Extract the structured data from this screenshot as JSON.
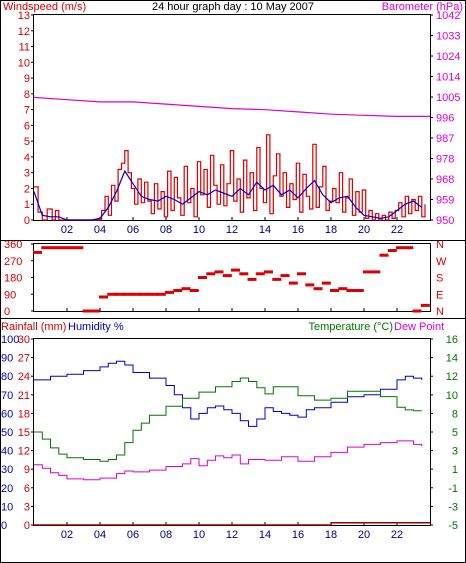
{
  "header": {
    "title": "24 hour graph day : 10 May 2007",
    "left_label": "Windspeed (m/s)",
    "right_label": "Barometer (hPa)"
  },
  "colors": {
    "red": "#dd0000",
    "blue": "#0000cc",
    "magenta": "#dd00dd",
    "green": "#007700",
    "darkred": "#990000",
    "frame": "#000000"
  },
  "chart_data": [
    {
      "type": "line",
      "title": "24 hour graph day : 10 May 2007",
      "ylabel": "Windspeed (m/s)",
      "ylabel_right": "Barometer (hPa)",
      "x_ticks": [
        "02",
        "04",
        "06",
        "08",
        "10",
        "12",
        "14",
        "16",
        "18",
        "20",
        "22"
      ],
      "xlim": [
        0,
        24
      ],
      "ylim": [
        0,
        13
      ],
      "y_ticks": [
        0,
        1,
        2,
        3,
        4,
        5,
        6,
        7,
        8,
        9,
        10,
        11,
        12,
        13
      ],
      "y2_ticks": [
        950,
        959,
        968,
        978,
        987,
        996,
        1005,
        1014,
        1024,
        1033,
        1042
      ],
      "ylim_right": [
        950,
        1042
      ],
      "series": [
        {
          "name": "Windspeed (m/s)",
          "color": "#dd0000",
          "x": [
            0,
            0.25,
            0.5,
            0.8,
            1.1,
            1.3,
            1.5,
            1.8,
            2.0,
            2.2,
            2.5,
            2.8,
            3.0,
            3.3,
            3.6,
            3.9,
            4.1,
            4.3,
            4.5,
            4.7,
            4.9,
            5.1,
            5.3,
            5.5,
            5.7,
            5.9,
            6.1,
            6.3,
            6.5,
            6.7,
            6.9,
            7.1,
            7.3,
            7.5,
            7.7,
            7.9,
            8.1,
            8.3,
            8.5,
            8.7,
            8.9,
            9.1,
            9.3,
            9.5,
            9.7,
            9.9,
            10.1,
            10.3,
            10.5,
            10.7,
            10.9,
            11.1,
            11.3,
            11.5,
            11.7,
            11.9,
            12.1,
            12.3,
            12.5,
            12.7,
            12.9,
            13.1,
            13.3,
            13.5,
            13.7,
            13.9,
            14.1,
            14.3,
            14.5,
            14.7,
            14.9,
            15.1,
            15.3,
            15.5,
            15.7,
            15.9,
            16.1,
            16.3,
            16.5,
            16.7,
            16.9,
            17.1,
            17.3,
            17.5,
            17.7,
            17.9,
            18.1,
            18.3,
            18.5,
            18.7,
            18.9,
            19.1,
            19.3,
            19.5,
            19.7,
            19.9,
            20.1,
            20.3,
            20.5,
            20.7,
            20.9,
            21.1,
            21.3,
            21.5,
            21.7,
            21.9,
            22.1,
            22.3,
            22.5,
            22.7,
            22.9,
            23.1,
            23.3,
            23.5,
            23.7
          ],
          "values": [
            2.1,
            0.5,
            0.0,
            0.7,
            0.0,
            0.6,
            0.0,
            0.0,
            0.0,
            0.0,
            0.0,
            0.0,
            0.0,
            0.0,
            0.0,
            0.0,
            0.6,
            1.5,
            0.3,
            2.2,
            1.2,
            3.2,
            3.6,
            4.4,
            3.0,
            2.0,
            1.0,
            2.6,
            1.1,
            2.4,
            1.2,
            0.4,
            2.3,
            0.7,
            1.8,
            0.2,
            3.1,
            0.6,
            2.7,
            1.4,
            0.3,
            3.4,
            1.1,
            2.0,
            0.2,
            3.7,
            1.6,
            3.2,
            0.8,
            4.1,
            2.2,
            1.0,
            3.5,
            0.9,
            2.3,
            4.4,
            1.2,
            2.6,
            0.5,
            3.8,
            1.4,
            3.0,
            0.6,
            4.6,
            2.0,
            1.1,
            5.4,
            0.4,
            2.8,
            4.2,
            1.5,
            3.0,
            0.8,
            2.3,
            1.3,
            3.6,
            0.5,
            2.9,
            1.5,
            0.7,
            4.8,
            0.8,
            2.1,
            3.4,
            0.6,
            1.2,
            2.0,
            1.1,
            3.0,
            0.5,
            1.4,
            2.6,
            0.3,
            1.8,
            0.5,
            1.9,
            0.1,
            0.6,
            0.0,
            0.4,
            0.0,
            0.3,
            0.0,
            0.5,
            0.1,
            0.6,
            1.1,
            0.2,
            1.5,
            0.4,
            1.3,
            0.6,
            1.5,
            0.2,
            1.0
          ]
        },
        {
          "name": "Windspeed average",
          "color": "#0000cc",
          "x": [
            0,
            0.5,
            1.0,
            1.5,
            2.0,
            2.5,
            3.0,
            3.5,
            4.0,
            4.5,
            5.0,
            5.5,
            6.0,
            6.5,
            7.0,
            7.5,
            8.0,
            8.5,
            9.0,
            9.5,
            10.0,
            10.5,
            11.0,
            11.5,
            12.0,
            12.5,
            13.0,
            13.5,
            14.0,
            14.5,
            15.0,
            15.5,
            16.0,
            16.5,
            17.0,
            17.5,
            18.0,
            18.5,
            19.0,
            19.5,
            20.0,
            20.5,
            21.0,
            21.5,
            22.0,
            22.5,
            23.0,
            23.5
          ],
          "values": [
            1.8,
            0.3,
            0.2,
            0.2,
            0.0,
            0.0,
            0.0,
            0.0,
            0.1,
            0.8,
            1.8,
            3.1,
            2.3,
            1.5,
            1.3,
            1.2,
            1.5,
            1.3,
            1.0,
            1.4,
            1.8,
            1.6,
            1.9,
            1.7,
            1.5,
            2.0,
            1.6,
            2.4,
            1.9,
            2.2,
            1.6,
            1.9,
            1.4,
            2.0,
            2.5,
            1.6,
            1.1,
            1.4,
            1.5,
            0.8,
            0.3,
            0.2,
            0.1,
            0.2,
            0.6,
            1.0,
            1.2,
            0.8
          ]
        },
        {
          "name": "Barometer (hPa)",
          "axis": "right",
          "color": "#dd00dd",
          "x": [
            0,
            2,
            4,
            6,
            8,
            10,
            12,
            14,
            16,
            18,
            20,
            22,
            24
          ],
          "values": [
            1005,
            1004,
            1003,
            1003,
            1002,
            1001,
            1000,
            999.5,
            998.5,
            997.5,
            997,
            996.5,
            996.5
          ]
        }
      ]
    },
    {
      "type": "scatter",
      "title": "",
      "ylabel": "Wind direction",
      "x_ticks": [
        "02",
        "04",
        "06",
        "08",
        "10",
        "12",
        "14",
        "16",
        "18",
        "20",
        "22"
      ],
      "xlim": [
        0,
        24
      ],
      "ylim": [
        0,
        360
      ],
      "y_ticks": [
        0,
        90,
        180,
        270,
        360
      ],
      "y2_ticks": [
        "N",
        "E",
        "S",
        "W",
        "N"
      ],
      "series": [
        {
          "name": "Wind direction",
          "color": "#dd0000",
          "x": [
            0,
            0.5,
            1.0,
            1.5,
            2.0,
            2.5,
            3.0,
            3.5,
            4.0,
            4.5,
            5.0,
            5.5,
            6.0,
            6.5,
            7.0,
            7.5,
            8.0,
            8.5,
            9.0,
            9.5,
            10.0,
            10.5,
            11.0,
            11.5,
            12.0,
            12.5,
            13.0,
            13.5,
            14.0,
            14.5,
            15.0,
            15.5,
            16.0,
            16.5,
            17.0,
            17.5,
            18.0,
            18.5,
            19.0,
            19.5,
            20.0,
            20.5,
            21.0,
            21.5,
            22.0,
            22.5,
            23.0,
            23.5
          ],
          "values": [
            315,
            340,
            340,
            340,
            340,
            340,
            0,
            0,
            75,
            90,
            90,
            90,
            90,
            90,
            90,
            90,
            100,
            110,
            120,
            110,
            180,
            200,
            210,
            190,
            220,
            200,
            170,
            200,
            210,
            170,
            190,
            150,
            200,
            140,
            120,
            150,
            110,
            120,
            110,
            110,
            210,
            210,
            300,
            325,
            340,
            340,
            0,
            30
          ]
        }
      ]
    },
    {
      "type": "line",
      "title": "",
      "ylabel": "Rainfall (mm)",
      "ylabel_2": "Humidity %",
      "ylabel_right": "Temperature (°C)",
      "ylabel_right_2": "Dew Point",
      "x_ticks": [
        "02",
        "04",
        "06",
        "08",
        "10",
        "12",
        "14",
        "16",
        "18",
        "20",
        "22"
      ],
      "xlim": [
        0,
        24
      ],
      "ylim": [
        0,
        30
      ],
      "y_ticks": [
        0,
        3,
        6,
        9,
        12,
        15,
        18,
        21,
        24,
        27,
        30
      ],
      "y_ticks_2": [
        0,
        10,
        20,
        30,
        40,
        50,
        60,
        70,
        80,
        90,
        100
      ],
      "y2_ticks": [
        -5,
        -3,
        -1,
        1,
        3,
        5,
        8,
        10,
        12,
        14,
        16
      ],
      "ylim_right": [
        -5,
        16
      ],
      "series": [
        {
          "name": "Rainfall (mm)",
          "color": "#990000",
          "x": [
            0,
            18,
            18.01,
            24
          ],
          "values": [
            0,
            0,
            0.35,
            0.35
          ]
        },
        {
          "name": "Humidity %",
          "axis": "humidity",
          "color": "#0000cc",
          "x": [
            0,
            1,
            2,
            3,
            4,
            4.5,
            5,
            5.5,
            6,
            7,
            8,
            8.5,
            9,
            9.5,
            10,
            10.5,
            11,
            11.5,
            12,
            12.5,
            13,
            13.5,
            14,
            14.5,
            15,
            15.5,
            16,
            16.5,
            17,
            18,
            19,
            20,
            21,
            22,
            22.5,
            23,
            23.5
          ],
          "values": [
            78,
            80,
            81,
            83,
            85,
            87,
            88,
            86,
            82,
            79,
            75,
            70,
            63,
            57,
            60,
            63,
            64,
            62,
            60,
            56,
            53,
            57,
            63,
            61,
            60,
            59,
            58,
            62,
            63,
            66,
            69,
            70,
            73,
            78,
            80,
            79,
            78
          ]
        },
        {
          "name": "Temperature (°C)",
          "axis": "right",
          "color": "#007700",
          "x": [
            0,
            0.5,
            1,
            1.5,
            2,
            3,
            4,
            4.5,
            5,
            5.5,
            6,
            6.5,
            7,
            8,
            9,
            10,
            11,
            12,
            12.5,
            13,
            13.5,
            14,
            14.5,
            15,
            16,
            17,
            18,
            19,
            20,
            21,
            22,
            22.5,
            23,
            23.5
          ],
          "values": [
            5.5,
            4.7,
            3.7,
            3.0,
            2.6,
            2.4,
            2.2,
            2.4,
            2.9,
            4.3,
            5.7,
            6.5,
            7.4,
            8.4,
            9.3,
            10.0,
            10.6,
            11.2,
            11.6,
            11.2,
            10.5,
            9.8,
            10.6,
            10.6,
            9.6,
            9.1,
            9.3,
            10.1,
            10.1,
            9.5,
            8.3,
            8.0,
            7.9,
            7.9
          ]
        },
        {
          "name": "Dew Point",
          "axis": "right",
          "color": "#dd00dd",
          "x": [
            0,
            0.5,
            1,
            1.5,
            2,
            3,
            4,
            5,
            5.5,
            6,
            7,
            8,
            9,
            9.5,
            10,
            10.5,
            11,
            11.5,
            12,
            12.5,
            13,
            14,
            15,
            16,
            17,
            18,
            19,
            20,
            21,
            22,
            23,
            23.5
          ],
          "values": [
            1.8,
            1.4,
            0.9,
            0.6,
            0.2,
            0.1,
            0.3,
            0.8,
            1.1,
            1.0,
            1.2,
            1.6,
            1.9,
            2.5,
            1.7,
            2.3,
            2.8,
            2.6,
            2.9,
            1.9,
            2.4,
            2.3,
            2.7,
            2.2,
            2.7,
            3.2,
            3.8,
            4.1,
            4.3,
            4.5,
            4.1,
            3.9
          ]
        }
      ]
    }
  ]
}
